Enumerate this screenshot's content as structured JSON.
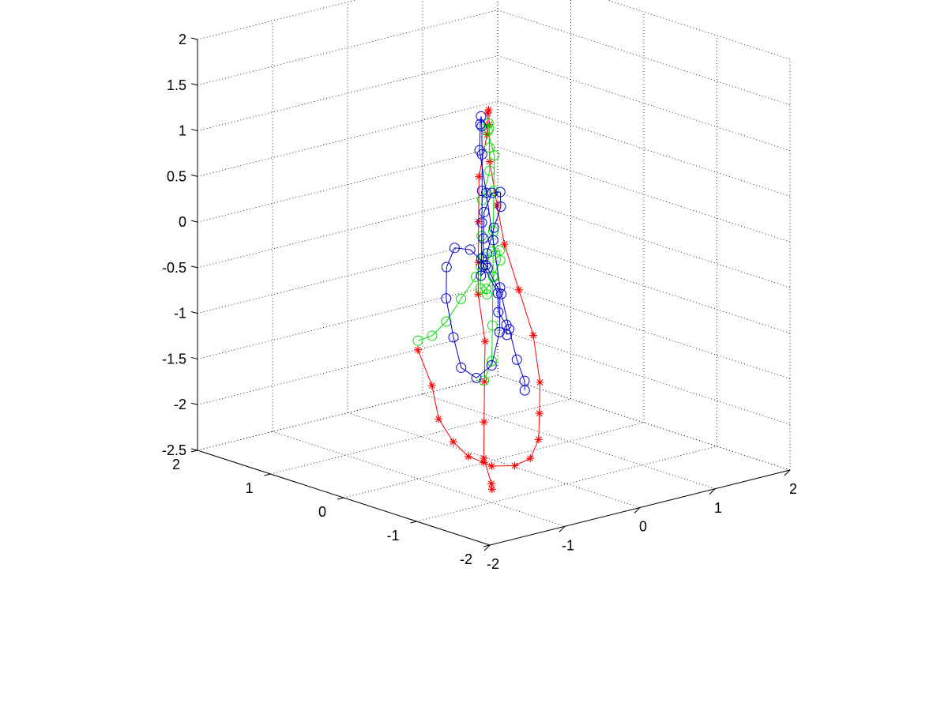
{
  "chart_data": {
    "type": "line3d",
    "xlim": [
      -2,
      2
    ],
    "ylim": [
      -2,
      2
    ],
    "zlim": [
      -2.5,
      2
    ],
    "grid": true,
    "x_ticks": [
      "-2",
      "-1",
      "0",
      "1",
      "2"
    ],
    "y_ticks": [
      "-2",
      "-1",
      "0",
      "1",
      "2"
    ],
    "z_ticks": [
      "-2.5",
      "-2",
      "-1.5",
      "-1",
      "-0.5",
      "0",
      "0.5",
      "1",
      "1.5",
      "2"
    ],
    "colors": {
      "red": "#ff0000",
      "green": "#00e000",
      "blue": "#0000cc",
      "grid": "#000000"
    },
    "series": [
      {
        "color": "#ff0000",
        "marker": "star",
        "points": [
          [
            -1.4,
            -0.4,
            -0.9
          ],
          [
            -1.7,
            -0.9,
            -1.1
          ],
          [
            -2.0,
            -1.3,
            -1.3
          ],
          [
            -2.0,
            -1.5,
            -1.5
          ],
          [
            -1.8,
            -1.5,
            -1.7
          ],
          [
            -1.4,
            -1.3,
            -1.9
          ],
          [
            -1.0,
            -1.0,
            -2.1
          ],
          [
            -0.5,
            -0.8,
            -2.25
          ],
          [
            0.0,
            -0.5,
            -2.35
          ],
          [
            0.5,
            -0.1,
            -2.35
          ],
          [
            0.9,
            0.3,
            -2.25
          ],
          [
            1.2,
            0.6,
            -2.05
          ],
          [
            1.5,
            1.0,
            -1.7
          ],
          [
            1.6,
            1.3,
            -1.3
          ],
          [
            1.7,
            1.6,
            -0.9
          ],
          [
            1.7,
            1.7,
            -0.5
          ],
          [
            1.6,
            1.7,
            0.0
          ],
          [
            1.4,
            1.5,
            0.5
          ],
          [
            1.1,
            1.2,
            0.8
          ],
          [
            0.7,
            0.8,
            0.95
          ],
          [
            0.3,
            0.4,
            0.9
          ],
          [
            -0.1,
            0.1,
            0.6
          ],
          [
            -0.3,
            -0.1,
            0.2
          ],
          [
            -0.4,
            -0.2,
            -0.2
          ],
          [
            -0.5,
            -0.3,
            -0.5
          ],
          [
            -0.7,
            -0.6,
            -0.9
          ],
          [
            -1.0,
            -0.9,
            -1.2
          ],
          [
            -1.2,
            -1.1,
            -1.55
          ],
          [
            -1.3,
            -1.2,
            -1.9
          ],
          [
            -1.2,
            -1.2,
            -2.2
          ],
          [
            -0.9,
            -0.9,
            -2.4
          ]
        ]
      },
      {
        "color": "#00e000",
        "marker": "o",
        "points": [
          [
            -1.4,
            -0.4,
            -0.8
          ],
          [
            -1.6,
            -0.8,
            -0.6
          ],
          [
            -1.8,
            -1.2,
            -0.3
          ],
          [
            -1.8,
            -1.4,
            0.0
          ],
          [
            -1.6,
            -1.4,
            0.2
          ],
          [
            -1.3,
            -1.2,
            0.3
          ],
          [
            -1.0,
            -1.0,
            0.25
          ],
          [
            -0.7,
            -0.8,
            0.15
          ],
          [
            -0.4,
            -0.5,
            -0.1
          ],
          [
            -0.2,
            -0.2,
            -0.4
          ],
          [
            0.0,
            0.1,
            -0.65
          ],
          [
            0.3,
            0.4,
            -0.85
          ],
          [
            0.6,
            0.8,
            -0.95
          ],
          [
            1.0,
            1.2,
            -0.9
          ],
          [
            1.3,
            1.5,
            -0.7
          ],
          [
            1.5,
            1.7,
            -0.4
          ],
          [
            1.6,
            1.7,
            -0.1
          ],
          [
            1.5,
            1.6,
            0.2
          ],
          [
            1.3,
            1.4,
            0.5
          ],
          [
            1.0,
            1.1,
            0.7
          ],
          [
            0.6,
            0.7,
            0.8
          ],
          [
            0.3,
            0.3,
            0.7
          ],
          [
            0.0,
            0.0,
            0.45
          ],
          [
            -0.2,
            -0.2,
            0.1
          ],
          [
            -0.4,
            -0.4,
            -0.3
          ],
          [
            -0.7,
            -0.7,
            -0.7
          ],
          [
            -1.0,
            -1.0,
            -0.95
          ],
          [
            -1.3,
            -1.2,
            -1.05
          ]
        ]
      },
      {
        "color": "#0000cc",
        "marker": "o",
        "points": [
          [
            -0.7,
            -0.9,
            -0.75
          ],
          [
            -1.0,
            -1.2,
            -0.5
          ],
          [
            -1.4,
            -1.5,
            -0.2
          ],
          [
            -1.6,
            -1.7,
            0.1
          ],
          [
            -1.7,
            -1.6,
            0.4
          ],
          [
            -1.5,
            -1.4,
            0.6
          ],
          [
            -1.2,
            -1.1,
            0.75
          ],
          [
            -0.8,
            -0.8,
            0.8
          ],
          [
            -0.4,
            -0.5,
            0.65
          ],
          [
            -0.1,
            -0.2,
            0.35
          ],
          [
            0.1,
            0.1,
            0.0
          ],
          [
            0.3,
            0.4,
            -0.4
          ],
          [
            0.6,
            0.7,
            -0.7
          ],
          [
            0.9,
            1.1,
            -0.95
          ],
          [
            1.2,
            1.4,
            -0.9
          ],
          [
            1.4,
            1.6,
            -0.6
          ],
          [
            1.5,
            1.7,
            -0.3
          ],
          [
            1.5,
            1.7,
            0.1
          ],
          [
            1.3,
            1.5,
            0.5
          ],
          [
            1.0,
            1.2,
            0.75
          ],
          [
            0.6,
            0.8,
            0.85
          ],
          [
            0.2,
            0.4,
            0.75
          ],
          [
            -0.1,
            0.0,
            0.45
          ],
          [
            -0.3,
            -0.3,
            0.05
          ],
          [
            -0.5,
            -0.6,
            -0.35
          ],
          [
            -0.8,
            -0.9,
            -0.7
          ],
          [
            -1.1,
            -1.1,
            -0.95
          ],
          [
            -1.4,
            -1.2,
            -1.0
          ],
          [
            -1.7,
            -1.3,
            -0.8
          ],
          [
            -1.9,
            -1.4,
            -0.4
          ],
          [
            -1.9,
            -1.3,
            0.0
          ],
          [
            -1.7,
            -1.1,
            0.25
          ],
          [
            -1.3,
            -0.8,
            0.3
          ],
          [
            -0.8,
            -0.5,
            0.1
          ],
          [
            -0.3,
            -0.2,
            -0.25
          ],
          [
            0.1,
            0.0,
            -0.7
          ],
          [
            0.4,
            0.2,
            -1.2
          ],
          [
            0.6,
            0.3,
            -1.6
          ],
          [
            0.8,
            0.4,
            -1.9
          ],
          [
            0.9,
            0.5,
            -2.05
          ]
        ]
      }
    ]
  }
}
